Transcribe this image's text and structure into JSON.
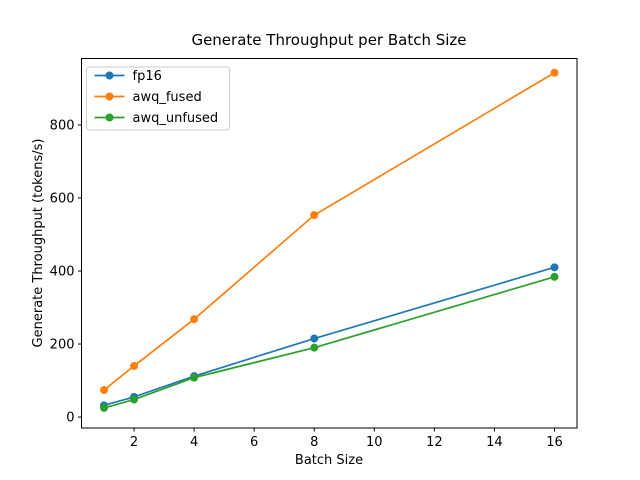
{
  "figure": {
    "background": "#ffffff"
  },
  "chart_data": {
    "type": "line",
    "title": "Generate Throughput per Batch Size",
    "xlabel": "Batch Size",
    "ylabel": "Generate Throughput (tokens/s)",
    "x": [
      1,
      2,
      4,
      8,
      16
    ],
    "series": [
      {
        "name": "fp16",
        "color": "#1f77b4",
        "marker": "circle",
        "values": [
          32,
          55,
          112,
          215,
          410
        ]
      },
      {
        "name": "awq_fused",
        "color": "#ff7f0e",
        "marker": "circle",
        "values": [
          74,
          140,
          268,
          553,
          943
        ]
      },
      {
        "name": "awq_unfused",
        "color": "#2ca02c",
        "marker": "circle",
        "values": [
          25,
          48,
          108,
          190,
          384
        ]
      }
    ],
    "xlim": [
      0.25,
      16.75
    ],
    "ylim": [
      -30,
      982
    ],
    "xticks": [
      2,
      4,
      6,
      8,
      10,
      12,
      14,
      16
    ],
    "yticks": [
      0,
      200,
      400,
      600,
      800
    ],
    "grid": false,
    "legend_position": "upper left",
    "legend_border_color": "#cccccc",
    "axis_color": "#000000",
    "text_color": "#000000"
  }
}
